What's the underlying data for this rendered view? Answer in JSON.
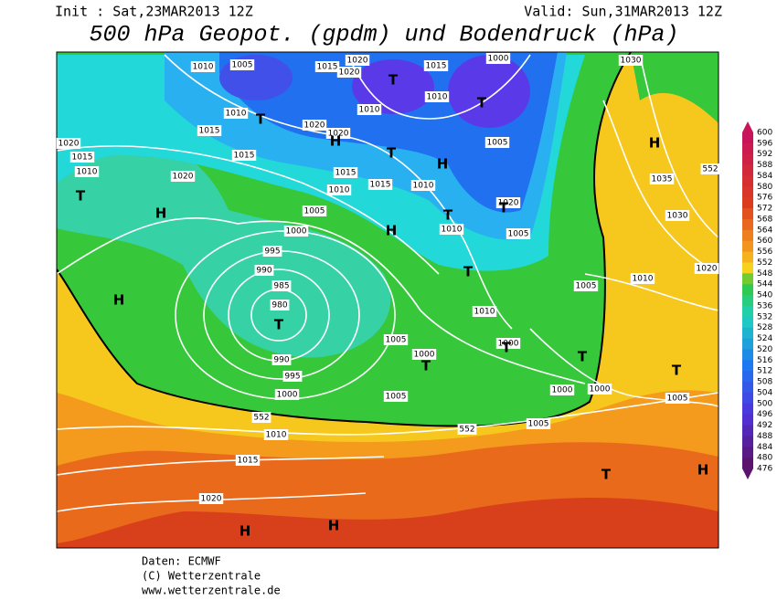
{
  "header": {
    "init": "Init : Sat,23MAR2013 12Z",
    "valid": "Valid: Sun,31MAR2013 12Z",
    "title": "500 hPa Geopot. (gpdm) und Bodendruck (hPa)"
  },
  "colorbar": {
    "labels": [
      600,
      596,
      592,
      588,
      584,
      580,
      576,
      572,
      568,
      564,
      560,
      556,
      552,
      548,
      544,
      540,
      536,
      532,
      528,
      524,
      520,
      516,
      512,
      508,
      504,
      500,
      496,
      492,
      488,
      484,
      480,
      476
    ]
  },
  "map": {
    "pressure_labels": [
      "1010",
      "1005",
      "1015",
      "1020",
      "1020",
      "1015",
      "1000",
      "1030",
      "1010",
      "1010",
      "1010",
      "1020",
      "1020",
      "1015",
      "1005",
      "1020",
      "1015",
      "1010",
      "1015",
      "1015",
      "1010",
      "1015",
      "1010",
      "1020",
      "1035",
      "1030",
      "1020",
      "1005",
      "1000",
      "1010",
      "1005",
      "995",
      "990",
      "985",
      "980",
      "1010",
      "1020",
      "1005",
      "1010",
      "1005",
      "1000",
      "1000",
      "990",
      "995",
      "1000",
      "1000",
      "1000",
      "1005",
      "1005",
      "552",
      "552",
      "1005",
      "1010",
      "1015",
      "1020",
      "552"
    ],
    "centers": [
      "T",
      "T",
      "H",
      "T",
      "T",
      "H",
      "H",
      "T",
      "H",
      "T",
      "T",
      "H",
      "T",
      "H",
      "T",
      "T",
      "T",
      "T",
      "T",
      "T",
      "H",
      "H",
      "H"
    ]
  },
  "footer": {
    "lines": [
      "Daten: ECMWF",
      "(C) Wetterzentrale",
      "www.wetterzentrale.de"
    ]
  }
}
